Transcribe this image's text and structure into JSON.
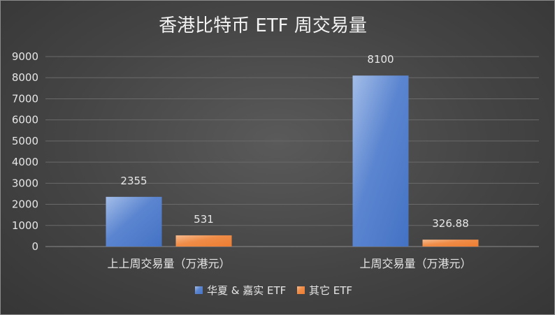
{
  "chart_data": {
    "type": "bar",
    "title": "香港比特币 ETF 周交易量",
    "xlabel": "",
    "ylabel": "",
    "categories": [
      "上上周交易量（万港元）",
      "上周交易量（万港元）"
    ],
    "series": [
      {
        "name": "华夏 & 嘉实 ETF",
        "values": [
          2355,
          8100
        ],
        "data_labels": [
          "2355",
          "8100"
        ],
        "color": "#4472C4"
      },
      {
        "name": "其它 ETF",
        "values": [
          531,
          326.88
        ],
        "data_labels": [
          "531",
          "326.88"
        ],
        "color": "#ED7D31"
      }
    ],
    "yticks": [
      "0",
      "1000",
      "2000",
      "3000",
      "4000",
      "5000",
      "6000",
      "7000",
      "8000",
      "9000"
    ],
    "ylim": [
      0,
      9000
    ],
    "grid": true,
    "legend_position": "bottom",
    "background": "dark"
  }
}
